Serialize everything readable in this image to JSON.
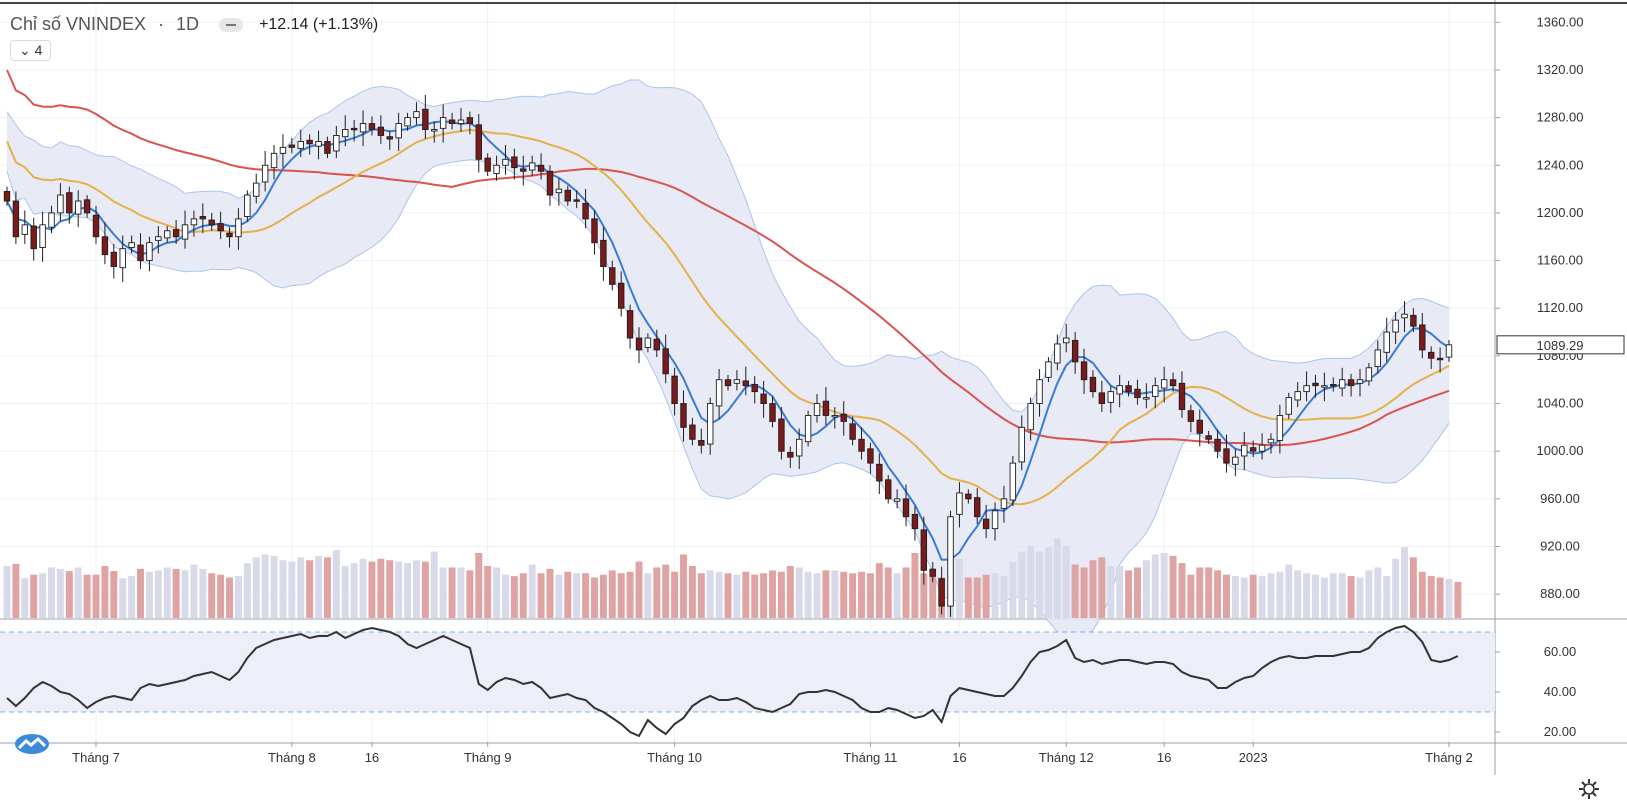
{
  "header": {
    "symbol": "Chỉ số VNINDEX",
    "separator": "·",
    "timeframe": "1D",
    "change": "+12.14 (+1.13%)"
  },
  "indicator_toggle": {
    "label": "4",
    "icon": "chevron-down-icon"
  },
  "price_tag": "1089.29",
  "icons": {
    "logo": "tradingview-logo-icon",
    "settings": "gear-icon",
    "collapse": "minus-icon"
  },
  "colors": {
    "up": "#ffffff",
    "down": "#7b1a1a",
    "ma_fast": "#3a7bd5",
    "ma_mid": "#e6b04a",
    "ma_slow": "#d9534f",
    "band_fill": "#e4e6f3",
    "band_line": "#a9c6ee",
    "vol_up": "#d9dae9",
    "vol_down": "#e0a3a3",
    "rsi": "#333333"
  },
  "chart_data": [
    {
      "type": "candlestick",
      "title": "Chỉ số VNINDEX · 1D",
      "x_tick_labels": [
        "Tháng 7",
        "Tháng 8",
        "16",
        "Tháng 9",
        "Tháng 10",
        "Tháng 11",
        "16",
        "Tháng 12",
        "16",
        "2023",
        "Tháng 2"
      ],
      "y_tick_labels": [
        "1360.00",
        "1320.00",
        "1280.00",
        "1240.00",
        "1200.00",
        "1160.00",
        "1120.00",
        "1080.00",
        "1040.00",
        "1000.00",
        "960.00",
        "920.00",
        "880.00"
      ],
      "ylim": [
        860,
        1372
      ],
      "last_value": 1089.29,
      "close": [
        1210,
        1180,
        1190,
        1170,
        1190,
        1200,
        1215,
        1200,
        1210,
        1200,
        1180,
        1165,
        1155,
        1170,
        1175,
        1160,
        1175,
        1180,
        1185,
        1180,
        1190,
        1195,
        1195,
        1190,
        1185,
        1180,
        1195,
        1215,
        1225,
        1240,
        1250,
        1255,
        1255,
        1260,
        1258,
        1260,
        1250,
        1265,
        1270,
        1270,
        1275,
        1270,
        1265,
        1262,
        1275,
        1280,
        1285,
        1270,
        1270,
        1280,
        1275,
        1278,
        1275,
        1245,
        1235,
        1240,
        1245,
        1238,
        1235,
        1242,
        1235,
        1215,
        1220,
        1210,
        1210,
        1195,
        1175,
        1155,
        1140,
        1120,
        1095,
        1085,
        1095,
        1085,
        1065,
        1040,
        1020,
        1010,
        1005,
        1040,
        1060,
        1055,
        1060,
        1055,
        1050,
        1040,
        1025,
        1000,
        995,
        1010,
        1030,
        1040,
        1030,
        1030,
        1025,
        1010,
        1000,
        990,
        975,
        960,
        960,
        945,
        935,
        900,
        895,
        870,
        945,
        965,
        960,
        945,
        935,
        950,
        960,
        990,
        1020,
        1040,
        1060,
        1075,
        1090,
        1095,
        1075,
        1060,
        1050,
        1040,
        1050,
        1055,
        1050,
        1045,
        1045,
        1055,
        1060,
        1055,
        1035,
        1025,
        1015,
        1010,
        1000,
        990,
        995,
        1005,
        1000,
        1005,
        1010,
        1030,
        1045,
        1050,
        1055,
        1055,
        1055,
        1055,
        1060,
        1055,
        1060,
        1070,
        1085,
        1100,
        1110,
        1115,
        1105,
        1085,
        1078,
        1077,
        1089.29
      ],
      "ma_fast_last": 1086,
      "ma_mid_last": 1070,
      "ma_slow_last": 1043
    },
    {
      "type": "bar",
      "title": "",
      "series": [
        {
          "name": "",
          "values": [
            72,
            75,
            55,
            60,
            62,
            70,
            68,
            65,
            70,
            60,
            60,
            72,
            65,
            55,
            58,
            68,
            64,
            66,
            70,
            68,
            66,
            74,
            68,
            62,
            60,
            56,
            58,
            76,
            84,
            88,
            86,
            80,
            78,
            84,
            80,
            86,
            84,
            94,
            72,
            76,
            82,
            78,
            82,
            80,
            78,
            76,
            80,
            78,
            92,
            70,
            70,
            70,
            66,
            90,
            72,
            70,
            60,
            58,
            62,
            74,
            62,
            68,
            60,
            64,
            62,
            62,
            56,
            60,
            66,
            62,
            64,
            78,
            62,
            70,
            74,
            64,
            88,
            72,
            62,
            66,
            64,
            62,
            60,
            64,
            60,
            62,
            66,
            64,
            72,
            70,
            64,
            62,
            66,
            66,
            64,
            62,
            64,
            62,
            76,
            70,
            62,
            70,
            90,
            62,
            66,
            56,
            86,
            82,
            56,
            56,
            60,
            62,
            58,
            78,
            92,
            100,
            92,
            98,
            110,
            100,
            74,
            70,
            80,
            84,
            72,
            72,
            66,
            70,
            80,
            88,
            90,
            86,
            76,
            60,
            70,
            70,
            66,
            60,
            58,
            56,
            60,
            58,
            62,
            64,
            74,
            66,
            62,
            60,
            56,
            62,
            62,
            58,
            56,
            66,
            70,
            58,
            82,
            98,
            84,
            64,
            58,
            56,
            54,
            50
          ]
        }
      ],
      "ylim": [
        0,
        180
      ]
    },
    {
      "type": "line",
      "title": "",
      "series": [
        {
          "name": "",
          "values": [
            37,
            33,
            37,
            42,
            45,
            43,
            40,
            39,
            36,
            32,
            35,
            37,
            38,
            37,
            36,
            42,
            44,
            43,
            44,
            45,
            46,
            48,
            49,
            50,
            48,
            46,
            50,
            57,
            62,
            64,
            66,
            67,
            68,
            69,
            67,
            68,
            68,
            70,
            67,
            69,
            71,
            72,
            71,
            70,
            68,
            64,
            62,
            64,
            66,
            68,
            66,
            64,
            62,
            44,
            41,
            45,
            47,
            46,
            44,
            45,
            42,
            37,
            38,
            39,
            37,
            36,
            32,
            30,
            27,
            24,
            20,
            18,
            26,
            22,
            19,
            24,
            27,
            33,
            36,
            38,
            36,
            36,
            37,
            35,
            32,
            31,
            30,
            32,
            34,
            39,
            40,
            40,
            41,
            40,
            38,
            36,
            32,
            30,
            30,
            32,
            31,
            29,
            27,
            28,
            31,
            25,
            38,
            42,
            41,
            40,
            39,
            38,
            38,
            42,
            48,
            55,
            60,
            61,
            63,
            66,
            57,
            55,
            56,
            54,
            55,
            56,
            56,
            55,
            54,
            55,
            55,
            54,
            50,
            48,
            47,
            46,
            42,
            42,
            45,
            47,
            48,
            52,
            55,
            57,
            58,
            57,
            57,
            58,
            58,
            58,
            59,
            60,
            60,
            62,
            67,
            70,
            72,
            73,
            70,
            65,
            56,
            55,
            56,
            58
          ]
        }
      ],
      "y_tick_labels": [
        "60.00",
        "40.00",
        "20.00"
      ],
      "bands": [
        70,
        30
      ],
      "ylim": [
        15,
        75
      ]
    }
  ]
}
